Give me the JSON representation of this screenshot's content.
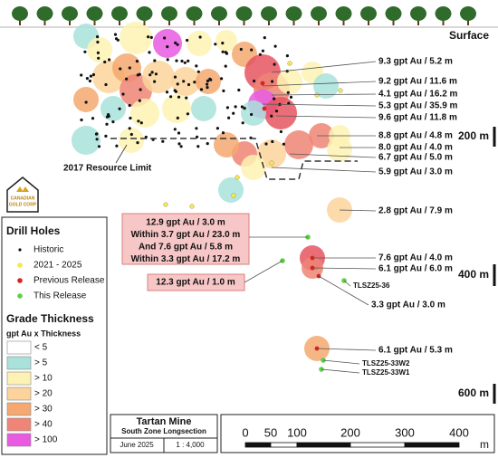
{
  "surface": "Surface",
  "depths": [
    "200 m",
    "400 m",
    "600 m"
  ],
  "resource_limit": "2017 Resource Limit",
  "annotations": [
    "9.3 gpt Au / 5.2 m",
    "9.2 gpt Au / 11.6 m",
    "4.1 gpt Au / 16.2 m",
    "5.3 gpt Au / 35.9 m",
    "9.6 gpt Au / 11.8 m",
    "8.8 gpt Au / 4.8 m",
    "8.0 gpt Au / 4.0 m",
    "6.7 gpt Au / 5.0 m",
    "5.9 gpt Au / 3.0 m",
    "2.8 gpt Au / 7.9 m",
    "7.6 gpt Au / 4.0 m",
    "6.1 gpt Au / 6.0 m",
    "TLSZ25-36",
    "3.3 gpt Au / 3.0 m",
    "6.1 gpt Au / 5.3 m",
    "TLSZ25-33W2",
    "TLSZ25-33W1"
  ],
  "callout": [
    "12.9 gpt Au / 3.0 m",
    "Within 3.7 gpt Au / 23.0 m",
    "And 7.6 gpt Au / 5.8 m",
    "Within 3.3 gpt Au / 17.2 m"
  ],
  "callout_small": "12.3 gpt Au / 1.0 m",
  "logo": [
    "CANADIAN",
    "GOLD CORP"
  ],
  "legend": {
    "drill_title": "Drill Holes",
    "drill_items": [
      "Historic",
      "2021 - 2025",
      "Previous Release",
      "This Release"
    ],
    "grade_title": "Grade Thickness",
    "grade_subtitle": "gpt Au x Thickness",
    "grade_items": [
      "< 5",
      "> 5",
      "> 10",
      "> 20",
      "> 30",
      "> 40",
      "> 100"
    ]
  },
  "title_block": {
    "title": "Tartan Mine",
    "subtitle": "South Zone Longsection",
    "date": "June 2025",
    "scale": "1 : 4,000"
  },
  "scale_bar": {
    "labels": [
      "0",
      "50",
      "100",
      "200",
      "300",
      "400"
    ],
    "unit": "m"
  }
}
